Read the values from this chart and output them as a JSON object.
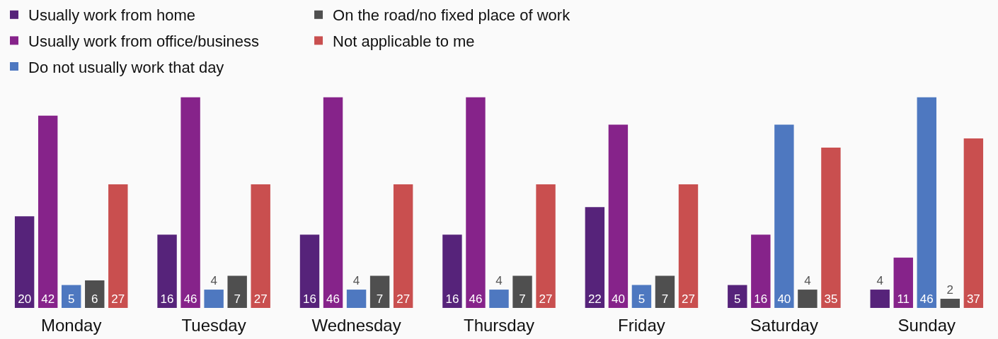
{
  "chart_data": {
    "type": "bar",
    "categories": [
      "Monday",
      "Tuesday",
      "Wednesday",
      "Thursday",
      "Friday",
      "Saturday",
      "Sunday"
    ],
    "series": [
      {
        "name": "Usually work from home",
        "color": "#56237a",
        "values": [
          20,
          16,
          16,
          16,
          22,
          5,
          4
        ]
      },
      {
        "name": "Usually work from office/business",
        "color": "#86238a",
        "values": [
          42,
          46,
          46,
          46,
          40,
          16,
          11
        ]
      },
      {
        "name": "Do not usually work that day",
        "color": "#4e78c0",
        "values": [
          5,
          4,
          4,
          4,
          5,
          40,
          46
        ]
      },
      {
        "name": "On the road/no fixed place of work",
        "color": "#4f4f4f",
        "values": [
          6,
          7,
          7,
          7,
          7,
          4,
          2
        ]
      },
      {
        "name": "Not applicable to me",
        "color": "#c94f4f",
        "values": [
          27,
          27,
          27,
          27,
          27,
          35,
          37
        ]
      }
    ],
    "data_labels": true,
    "legend": "top left"
  }
}
